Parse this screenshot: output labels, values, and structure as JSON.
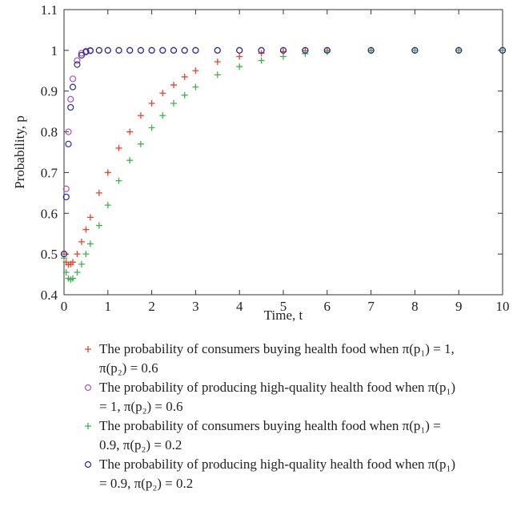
{
  "chart_data": {
    "type": "scatter",
    "x_label": "Time, t",
    "y_label": "Probability, p",
    "x": [
      0,
      0.05,
      0.1,
      0.15,
      0.2,
      0.3,
      0.4,
      0.5,
      0.6,
      0.8,
      1,
      1.25,
      1.5,
      1.75,
      2,
      2.25,
      2.5,
      2.75,
      3,
      3.5,
      4,
      4.5,
      5,
      5.5,
      6,
      7,
      8,
      9,
      10
    ],
    "xlim": [
      0,
      10
    ],
    "xticks": [
      0,
      1,
      2,
      3,
      4,
      5,
      6,
      7,
      8,
      9,
      10
    ],
    "ylim": [
      0.4,
      1.1
    ],
    "yticks": [
      0.4,
      0.5,
      0.6,
      0.7,
      0.8,
      0.9,
      1,
      1.1
    ],
    "series": [
      {
        "name": "The probability of consumers buying health food when π(p₁) = 1, π(p₂) = 0.6",
        "color": "#e8432a",
        "marker": "plus",
        "values": [
          0.5,
          0.48,
          0.474,
          0.475,
          0.48,
          0.5,
          0.53,
          0.56,
          0.59,
          0.65,
          0.7,
          0.76,
          0.8,
          0.84,
          0.87,
          0.895,
          0.915,
          0.935,
          0.95,
          0.972,
          0.985,
          0.993,
          0.997,
          0.999,
          1,
          1,
          1,
          1,
          1
        ]
      },
      {
        "name": "The probability of producing high-quality health food when π(p₁) = 1, π(p₂) = 0.6",
        "color": "#b04fc0",
        "marker": "circle",
        "values": [
          0.5,
          0.66,
          0.8,
          0.88,
          0.93,
          0.975,
          0.993,
          0.998,
          1,
          1,
          1,
          1,
          1,
          1,
          1,
          1,
          1,
          1,
          1,
          1,
          1,
          1,
          1,
          1,
          1,
          1,
          1,
          1,
          1
        ]
      },
      {
        "name": "The probability of consumers buying health food when π(p₁) = 0.9, π(p₂) = 0.2",
        "color": "#3cb44a",
        "marker": "plus",
        "values": [
          0.49,
          0.455,
          0.44,
          0.437,
          0.44,
          0.455,
          0.475,
          0.5,
          0.525,
          0.57,
          0.62,
          0.68,
          0.73,
          0.77,
          0.81,
          0.84,
          0.87,
          0.89,
          0.91,
          0.94,
          0.96,
          0.975,
          0.985,
          0.992,
          0.996,
          0.999,
          1,
          1,
          1
        ]
      },
      {
        "name": "The probability of producing high-quality health food when π(p₁) = 0.9, π(p₂) = 0.2",
        "color": "#2a2a9a",
        "marker": "circle",
        "values": [
          0.5,
          0.64,
          0.77,
          0.86,
          0.91,
          0.965,
          0.988,
          0.996,
          0.999,
          1,
          1,
          1,
          1,
          1,
          1,
          1,
          1,
          1,
          1,
          1,
          1,
          1,
          1,
          1,
          1,
          1,
          1,
          1,
          1
        ]
      }
    ]
  }
}
